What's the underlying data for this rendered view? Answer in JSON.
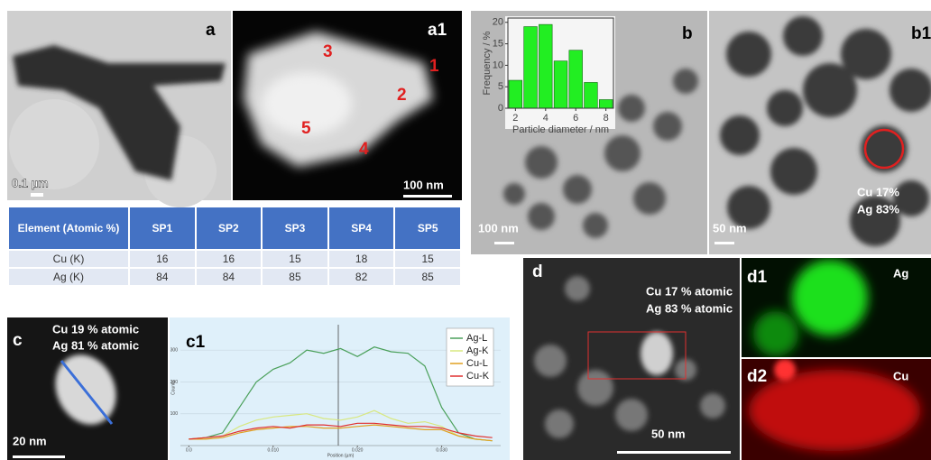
{
  "panels": {
    "a": {
      "label": "a",
      "scale_bar": "0.1 µm"
    },
    "a1": {
      "label": "a1",
      "scale_bar": "100 nm",
      "spots": [
        "1",
        "2",
        "3",
        "4",
        "5"
      ]
    },
    "b": {
      "label": "b",
      "scale_bar": "100 nm"
    },
    "b1": {
      "label": "b1",
      "scale_bar": "50 nm",
      "composition": [
        "Cu 17%",
        "Ag 83%"
      ]
    },
    "c": {
      "label": "c",
      "scale_bar": "20 nm",
      "composition": [
        "Cu 19 % atomic",
        "Ag 81 % atomic"
      ]
    },
    "c1": {
      "label": "c1"
    },
    "d": {
      "label": "d",
      "scale_bar": "50 nm",
      "composition": [
        "Cu 17 % atomic",
        "Ag 83 % atomic"
      ]
    },
    "d1": {
      "label": "d1",
      "element": "Ag"
    },
    "d2": {
      "label": "d2",
      "element": "Cu"
    }
  },
  "table": {
    "header": [
      "Element (Atomic %)",
      "SP1",
      "SP2",
      "SP3",
      "SP4",
      "SP5"
    ],
    "rows": [
      [
        "Cu (K)",
        16,
        16,
        15,
        18,
        15
      ],
      [
        "Ag (K)",
        84,
        84,
        85,
        82,
        85
      ]
    ]
  },
  "chart_data": [
    {
      "type": "histogram",
      "xlabel": "Particle diameter / nm",
      "ylabel": "Frequency / %",
      "bins": [
        1.5,
        2.5,
        3.5,
        4.5,
        5.5,
        6.5,
        7.5,
        8.5
      ],
      "values": [
        6.5,
        19,
        19.5,
        11,
        13.5,
        6,
        2
      ],
      "color": "#22ee22",
      "xlim": [
        1.5,
        8.5
      ],
      "ylim": [
        0,
        21
      ],
      "xticks": [
        2,
        4,
        6,
        8
      ],
      "yticks": [
        0,
        5,
        10,
        15,
        20
      ]
    },
    {
      "type": "line",
      "xlabel": "Position (µm)",
      "ylabel": "Counts",
      "x": [
        0,
        0.002,
        0.004,
        0.006,
        0.008,
        0.01,
        0.012,
        0.014,
        0.016,
        0.018,
        0.02,
        0.022,
        0.024,
        0.026,
        0.028,
        0.03,
        0.032,
        0.034,
        0.036
      ],
      "series": [
        {
          "name": "Ag-L",
          "color": "#4aa05a",
          "values": [
            20,
            25,
            40,
            120,
            200,
            240,
            260,
            300,
            290,
            305,
            280,
            310,
            295,
            290,
            250,
            120,
            40,
            20,
            15
          ]
        },
        {
          "name": "Ag-K",
          "color": "#d8e880",
          "values": [
            20,
            25,
            30,
            60,
            80,
            90,
            95,
            100,
            85,
            80,
            90,
            110,
            85,
            70,
            75,
            60,
            30,
            20,
            15
          ]
        },
        {
          "name": "Cu-L",
          "color": "#e0a020",
          "values": [
            20,
            20,
            25,
            40,
            50,
            55,
            60,
            60,
            55,
            55,
            60,
            65,
            60,
            55,
            50,
            50,
            30,
            20,
            15
          ]
        },
        {
          "name": "Cu-K",
          "color": "#e03030",
          "values": [
            20,
            25,
            30,
            45,
            55,
            60,
            55,
            65,
            65,
            60,
            70,
            70,
            65,
            60,
            60,
            55,
            40,
            30,
            25
          ]
        }
      ],
      "xlim": [
        -0.001,
        0.037
      ],
      "ylim": [
        0,
        380
      ],
      "xticks": [
        {
          "value": 0,
          "label": "0.0"
        },
        {
          "value": 0.01,
          "label": "0.010"
        },
        {
          "value": 0.02,
          "label": "0.020"
        },
        {
          "value": 0.03,
          "label": "0.030"
        }
      ],
      "yticks": [
        100,
        200,
        300
      ],
      "grid": true,
      "legend": "upper right"
    }
  ]
}
